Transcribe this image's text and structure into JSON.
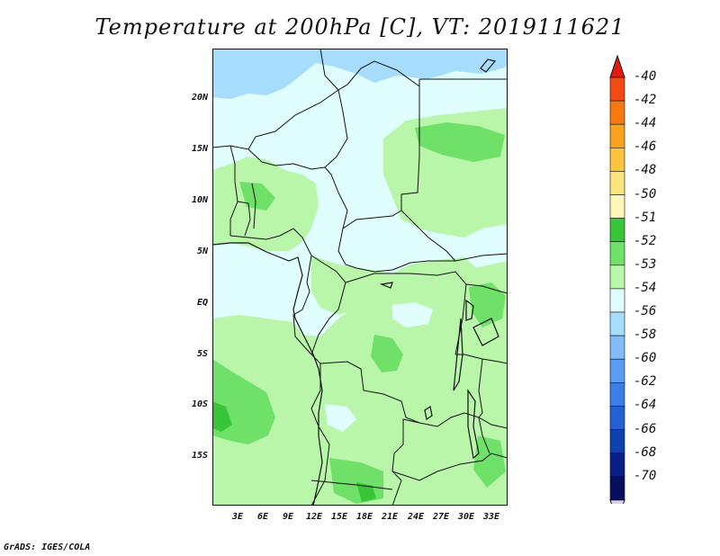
{
  "title": "Temperature at 200hPa [C], VT: 2019111621",
  "footer": "GrADS: IGES/COLA",
  "map": {
    "lat_labels": [
      "20N",
      "15N",
      "10N",
      "5N",
      "EQ",
      "5S",
      "10S",
      "15S"
    ],
    "lon_labels": [
      "3E",
      "6E",
      "9E",
      "12E",
      "15E",
      "18E",
      "21E",
      "24E",
      "27E",
      "30E",
      "33E"
    ]
  },
  "colorbar": {
    "labels": [
      "-40",
      "-42",
      "-44",
      "-46",
      "-48",
      "-50",
      "-51",
      "-52",
      "-53",
      "-54",
      "-56",
      "-58",
      "-60",
      "-62",
      "-64",
      "-66",
      "-68",
      "-70"
    ],
    "colors": [
      "#e21b10",
      "#f14a12",
      "#f57a12",
      "#f9a21f",
      "#fbc33e",
      "#fde47e",
      "#fdf8b8",
      "#38c537",
      "#6fe068",
      "#b9f6a9",
      "#e0fefe",
      "#a6dcfc",
      "#82bcf7",
      "#5a9cf2",
      "#3b7eea",
      "#2461d5",
      "#0f41b1",
      "#0a1e86",
      "#07105c"
    ],
    "arrow_bottom_color": "#d2d2f0"
  },
  "field_colors": {
    "light_blue": "#a6dcfc",
    "pale_cyan": "#e0fefe",
    "light_green": "#b9f6a9",
    "green": "#6fe068",
    "dark_green": "#38c537",
    "border": "#111111"
  }
}
